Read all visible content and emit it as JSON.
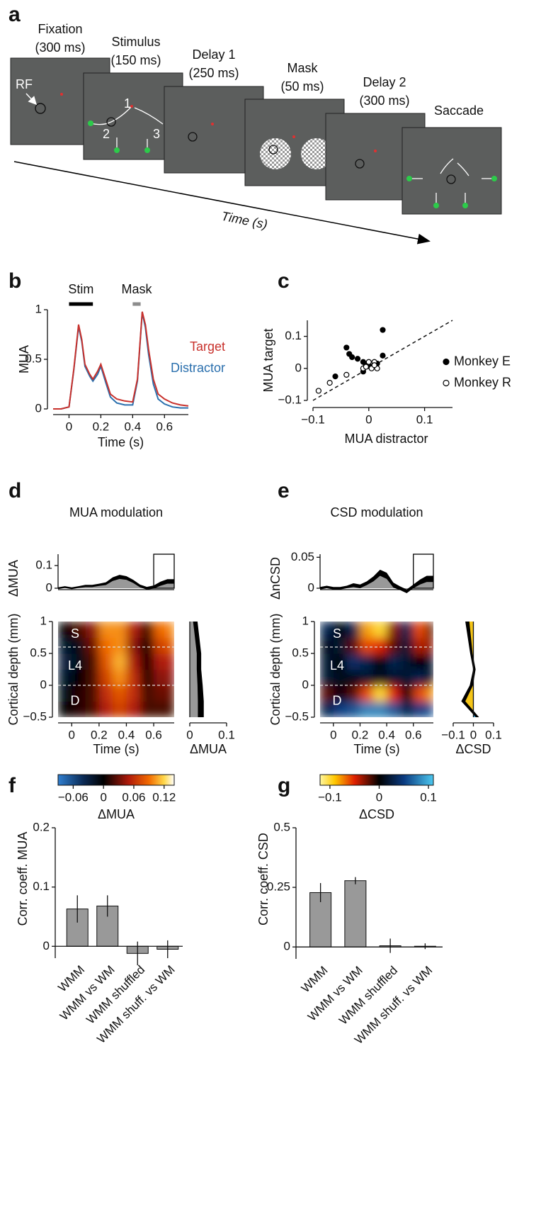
{
  "panel": "a",
  "task": {
    "screens": [
      {
        "name": "Fixation",
        "duration": "(300 ms)"
      },
      {
        "name": "Stimulus",
        "duration": "(150 ms)"
      },
      {
        "name": "Delay 1",
        "duration": "(250 ms)"
      },
      {
        "name": "Mask",
        "duration": "(50 ms)"
      },
      {
        "name": "Delay 2",
        "duration": "(300 ms)"
      },
      {
        "name": "Saccade"
      }
    ],
    "rf_label": "RF",
    "stimulus_numbers": [
      "1",
      "2",
      "3"
    ],
    "time_label": "Time (s)"
  },
  "chart_data": [
    {
      "type": "line",
      "panel": "b",
      "x": [
        -0.1,
        -0.05,
        0,
        0.03,
        0.06,
        0.08,
        0.1,
        0.13,
        0.15,
        0.18,
        0.2,
        0.23,
        0.26,
        0.3,
        0.35,
        0.4,
        0.43,
        0.46,
        0.48,
        0.5,
        0.53,
        0.56,
        0.6,
        0.65,
        0.7,
        0.75
      ],
      "series": [
        {
          "name": "Target",
          "color": "#c8312c",
          "values": [
            0,
            0,
            0.02,
            0.4,
            0.85,
            0.7,
            0.45,
            0.35,
            0.3,
            0.38,
            0.45,
            0.3,
            0.15,
            0.1,
            0.08,
            0.07,
            0.3,
            0.98,
            0.85,
            0.6,
            0.3,
            0.15,
            0.1,
            0.06,
            0.04,
            0.03
          ]
        },
        {
          "name": "Distractor",
          "color": "#2a6fad",
          "values": [
            0,
            0,
            0.02,
            0.39,
            0.83,
            0.68,
            0.43,
            0.33,
            0.28,
            0.35,
            0.43,
            0.27,
            0.12,
            0.06,
            0.04,
            0.04,
            0.28,
            0.97,
            0.82,
            0.55,
            0.25,
            0.1,
            0.05,
            0.02,
            0.01,
            0.01
          ]
        }
      ],
      "xlim": [
        -0.1,
        0.75
      ],
      "xticks": [
        0,
        0.2,
        0.4,
        0.6
      ],
      "ylim": [
        0,
        1
      ],
      "yticks": [
        0,
        0.5,
        1
      ],
      "xlabel": "Time (s)",
      "ylabel": "MUA",
      "legend": "right",
      "periods": [
        {
          "label": "Stim",
          "start": 0,
          "end": 0.15,
          "color": "#000000"
        },
        {
          "label": "Mask",
          "start": 0.4,
          "end": 0.45,
          "color": "#8c8c8c"
        }
      ]
    },
    {
      "type": "scatter",
      "panel": "c",
      "xlim": [
        -0.1,
        0.15
      ],
      "ylim": [
        -0.1,
        0.15
      ],
      "xticks": [
        {
          "value": -0.1,
          "label": "−0.1"
        },
        0,
        0.1
      ],
      "yticks": [
        {
          "value": -0.1,
          "label": "−0.1"
        },
        0,
        0.1
      ],
      "xlabel": "MUA distractor",
      "ylabel": "MUA target",
      "diagonal": true,
      "legend": "right",
      "series": [
        {
          "name": "Monkey E",
          "color": "#000000",
          "filled": true,
          "x": [
            0.025,
            -0.04,
            -0.035,
            -0.03,
            -0.02,
            0.025,
            -0.06,
            -0.01,
            -0.005,
            0.005,
            0,
            -0.01,
            0.015
          ],
          "values": [
            0.12,
            0.065,
            0.045,
            0.035,
            0.03,
            0.04,
            -0.025,
            0.02,
            0.01,
            0.005,
            0.01,
            -0.01,
            0.015
          ]
        },
        {
          "name": "Monkey R",
          "color": "#000000",
          "filled": false,
          "x": [
            -0.09,
            -0.07,
            -0.04,
            -0.01,
            0,
            0.01,
            0.005,
            0.015,
            -0.005,
            0.01
          ],
          "values": [
            -0.07,
            -0.045,
            -0.02,
            0,
            0.02,
            0.02,
            0,
            0,
            0.005,
            0.01
          ]
        }
      ]
    },
    {
      "type": "heatmap",
      "panel": "d",
      "title": "MUA modulation",
      "trace": {
        "ylabel": "ΔMUA",
        "x": [
          -0.1,
          -0.05,
          0,
          0.05,
          0.1,
          0.15,
          0.2,
          0.25,
          0.3,
          0.35,
          0.4,
          0.45,
          0.5,
          0.55,
          0.6,
          0.65,
          0.7,
          0.75
        ],
        "values": [
          0,
          0.005,
          0,
          0.005,
          0.01,
          0.01,
          0.015,
          0.02,
          0.04,
          0.05,
          0.045,
          0.03,
          0.01,
          0,
          0.005,
          0.02,
          0.03,
          0.03
        ],
        "error": [
          0.004,
          0.004,
          0.004,
          0.004,
          0.005,
          0.005,
          0.005,
          0.006,
          0.008,
          0.009,
          0.008,
          0.007,
          0.006,
          0.006,
          0.007,
          0.009,
          0.01,
          0.01
        ],
        "ylim": [
          0,
          0.15
        ],
        "yticks": [
          0,
          0.1
        ],
        "window": [
          0.6,
          0.75
        ],
        "color": "#999999"
      },
      "x_edges": [
        -0.1,
        0,
        0.1,
        0.2,
        0.3,
        0.4,
        0.5,
        0.6,
        0.7,
        0.75
      ],
      "y_edges": [
        -0.5,
        -0.25,
        0,
        0.25,
        0.5,
        0.75,
        1
      ],
      "z": [
        [
          0,
          0.01,
          0.02,
          0.05,
          0.07,
          0.05,
          0.02,
          0.02,
          0.02
        ],
        [
          -0.01,
          0.01,
          0.02,
          0.06,
          0.08,
          0.06,
          0.02,
          0.03,
          0.03
        ],
        [
          -0.02,
          0,
          0.02,
          0.07,
          0.1,
          0.06,
          0.01,
          0.04,
          0.04
        ],
        [
          -0.03,
          -0.01,
          0.02,
          0.08,
          0.11,
          0.05,
          0,
          0.05,
          0.05
        ],
        [
          -0.02,
          -0.01,
          0.03,
          0.09,
          0.1,
          0.04,
          0,
          0.07,
          0.08
        ],
        [
          0,
          0.02,
          0.04,
          0.1,
          0.1,
          0.05,
          0.02,
          0.09,
          0.1
        ]
      ],
      "xlim": [
        -0.1,
        0.75
      ],
      "ylim": [
        -0.5,
        1
      ],
      "xticks": [
        0,
        0.2,
        0.4,
        0.6
      ],
      "yticks": [
        {
          "value": -0.5,
          "label": "−0.5"
        },
        0,
        0.5,
        1
      ],
      "xlabel": "Time (s)",
      "ylabel": "Cortical depth (mm)",
      "layers": [
        "S",
        "L4",
        "D"
      ],
      "boundaries": [
        0.6,
        0
      ],
      "colorbar": {
        "stops": [
          {
            "value": -0.09,
            "color": "#2f7fd0"
          },
          {
            "value": -0.04,
            "color": "#0b2a55"
          },
          {
            "value": 0,
            "color": "#000000"
          },
          {
            "value": 0.05,
            "color": "#b01a0a"
          },
          {
            "value": 0.09,
            "color": "#f26a00"
          },
          {
            "value": 0.12,
            "color": "#ffd84a"
          },
          {
            "value": 0.14,
            "color": "#ffffff"
          }
        ],
        "ticks": [
          {
            "value": -0.06,
            "label": "−0.06"
          },
          0,
          0.06,
          0.12
        ],
        "label": "ΔMUA"
      },
      "profile": {
        "depth": [
          -0.5,
          -0.25,
          0,
          0.25,
          0.5,
          0.75,
          1
        ],
        "values": [
          0.03,
          0.03,
          0.028,
          0.025,
          0.025,
          0.02,
          0.015
        ],
        "error": [
          0.008,
          0.008,
          0.007,
          0.006,
          0.006,
          0.006,
          0.006
        ],
        "xlim": [
          0,
          0.1
        ],
        "xticks": [
          0,
          0.1
        ],
        "xlabel": "ΔMUA",
        "color_positive": "#999999",
        "color_negative": "#999999"
      }
    },
    {
      "type": "heatmap",
      "panel": "e",
      "title": "CSD modulation",
      "trace": {
        "ylabel": "ΔnCSD",
        "x": [
          -0.1,
          -0.05,
          0,
          0.05,
          0.1,
          0.15,
          0.2,
          0.25,
          0.3,
          0.35,
          0.4,
          0.45,
          0.5,
          0.55,
          0.6,
          0.65,
          0.7,
          0.75
        ],
        "values": [
          0,
          0.002,
          0,
          0,
          0.002,
          0.005,
          0.003,
          0.008,
          0.015,
          0.025,
          0.02,
          0.005,
          0,
          -0.005,
          0.003,
          0.01,
          0.015,
          0.015
        ],
        "error": [
          0.002,
          0.002,
          0.002,
          0.002,
          0.002,
          0.003,
          0.003,
          0.003,
          0.004,
          0.005,
          0.005,
          0.004,
          0.003,
          0.003,
          0.003,
          0.004,
          0.005,
          0.005
        ],
        "ylim": [
          0,
          0.055
        ],
        "yticks": [
          0,
          0.05
        ],
        "window": [
          0.6,
          0.75
        ],
        "color": "#999999"
      },
      "x_edges": [
        -0.1,
        0,
        0.1,
        0.2,
        0.3,
        0.4,
        0.5,
        0.6,
        0.7,
        0.75
      ],
      "y_edges": [
        -0.5,
        -0.25,
        0,
        0.25,
        0.5,
        0.75,
        1
      ],
      "z": [
        [
          0.03,
          0.05,
          0.06,
          0.08,
          0.08,
          0.06,
          0.03,
          0.05,
          0.06
        ],
        [
          -0.02,
          0,
          -0.02,
          -0.06,
          -0.1,
          -0.05,
          0,
          -0.06,
          -0.08
        ],
        [
          0.02,
          0.01,
          0.01,
          0.02,
          0.01,
          0.02,
          0.02,
          0.03,
          0
        ],
        [
          0.02,
          0,
          0.04,
          0.03,
          0,
          0.03,
          0.02,
          0,
          0.02
        ],
        [
          0.01,
          0.02,
          -0.02,
          -0.06,
          -0.05,
          -0.02,
          0.02,
          -0.04,
          -0.03
        ],
        [
          0.03,
          0,
          0.03,
          -0.08,
          -0.1,
          -0.03,
          0.03,
          -0.06,
          0
        ]
      ],
      "xlim": [
        -0.1,
        0.75
      ],
      "ylim": [
        -0.5,
        1
      ],
      "xticks": [
        0,
        0.2,
        0.4,
        0.6
      ],
      "yticks": [
        {
          "value": -0.5,
          "label": "−0.5"
        },
        0,
        0.5,
        1
      ],
      "xlabel": "Time (s)",
      "ylabel": "Cortical depth (mm)",
      "layers": [
        "S",
        "L4",
        "D"
      ],
      "boundaries": [
        0.6,
        0
      ],
      "colorbar": {
        "stops": [
          {
            "value": -0.12,
            "color": "#fff7a0"
          },
          {
            "value": -0.09,
            "color": "#ffc800"
          },
          {
            "value": -0.05,
            "color": "#e02000"
          },
          {
            "value": 0,
            "color": "#000000"
          },
          {
            "value": 0.05,
            "color": "#0a3a80"
          },
          {
            "value": 0.11,
            "color": "#4cc8f0"
          }
        ],
        "ticks": [
          {
            "value": -0.1,
            "label": "−0.1"
          },
          0,
          0.1
        ],
        "label": "ΔCSD"
      },
      "profile": {
        "depth": [
          -0.5,
          -0.25,
          0,
          0.25,
          0.5,
          0.75,
          1
        ],
        "values": [
          0.02,
          -0.05,
          -0.01,
          0.005,
          -0.01,
          -0.02,
          -0.03
        ],
        "error": [
          0.008,
          0.01,
          0.008,
          0.006,
          0.006,
          0.008,
          0.01
        ],
        "xlim": [
          -0.1,
          0.1
        ],
        "xticks": [
          {
            "value": -0.1,
            "label": "−0.1"
          },
          0,
          0.1
        ],
        "xlabel": "ΔCSD",
        "color_positive": "#3ba3d8",
        "color_negative": "#f5c518"
      }
    },
    {
      "type": "bar",
      "panel": "f",
      "categories": [
        "WMM",
        "WMM vs WM",
        "WMM shuffled",
        "WMM shuff. vs WM"
      ],
      "values": [
        0.063,
        0.068,
        -0.012,
        -0.005
      ],
      "errors": [
        0.023,
        0.018,
        0.02,
        0.015
      ],
      "color": "#999999",
      "ylim": [
        -0.02,
        0.2
      ],
      "yticks": [
        0,
        0.1,
        0.2
      ],
      "ylabel": "Corr. coeff. MUA"
    },
    {
      "type": "bar",
      "panel": "g",
      "categories": [
        "WMM",
        "WMM vs WM",
        "WMM shuffled",
        "WMM shuff. vs WM"
      ],
      "values": [
        0.228,
        0.278,
        0.005,
        0.003
      ],
      "errors": [
        0.04,
        0.015,
        0.03,
        0.012
      ],
      "color": "#999999",
      "ylim": [
        -0.05,
        0.5
      ],
      "yticks": [
        0,
        0.25,
        0.5
      ],
      "ylabel": "Corr. coeff. CSD"
    }
  ]
}
